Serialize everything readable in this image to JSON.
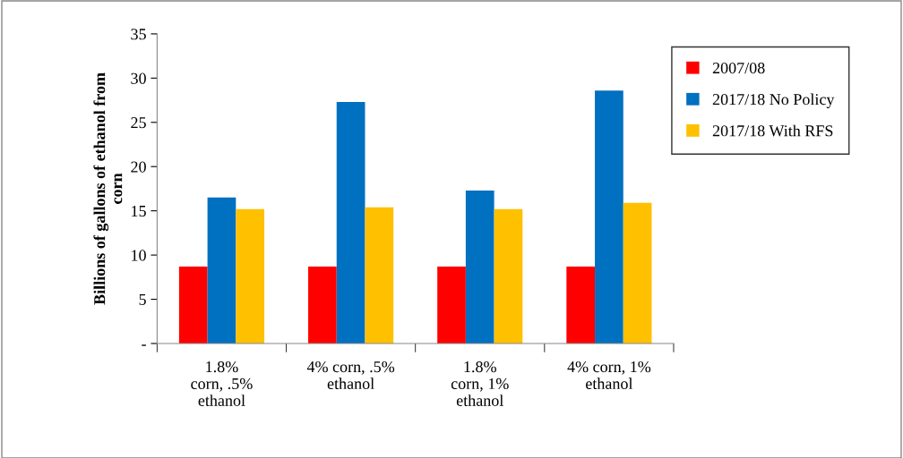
{
  "chart_data": {
    "type": "bar",
    "ylabel": "Billions of gallons of ethanol from\ncorn",
    "categories": [
      "1.8%\ncorn, .5%\nethanol",
      "4% corn, .5%\nethanol",
      "1.8%\ncorn, 1%\nethanol",
      "4% corn, 1%\nethanol"
    ],
    "series": [
      {
        "name": "2007/08",
        "color": "#ff0000",
        "values": [
          8.7,
          8.7,
          8.7,
          8.7
        ]
      },
      {
        "name": "2017/18 No Policy",
        "color": "#0070c0",
        "values": [
          16.5,
          27.3,
          17.3,
          28.6
        ]
      },
      {
        "name": "2017/18 With RFS",
        "color": "#ffc000",
        "values": [
          15.2,
          15.4,
          15.2,
          15.9
        ]
      }
    ],
    "ylim": [
      0,
      35
    ],
    "yticks": [
      {
        "value": 0,
        "label": "-"
      },
      5,
      10,
      15,
      20,
      25,
      30,
      35
    ],
    "grid": false,
    "legend": "top right"
  }
}
